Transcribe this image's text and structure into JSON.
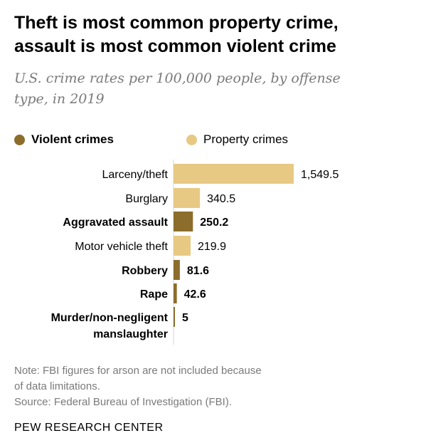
{
  "title_line1": "Theft is most common property crime,",
  "title_line2": "assault is most common violent crime",
  "subtitle_line1": "U.S. crime rates per 100,000 people, by offense",
  "subtitle_line2": "type, in 2019",
  "legend": {
    "violent": "Violent crimes",
    "property": "Property crimes"
  },
  "colors": {
    "violent": "#8c6d2c",
    "property": "#e8c983"
  },
  "chart_data": {
    "type": "bar",
    "orientation": "horizontal",
    "title": "Theft is most common property crime, assault is most common violent crime",
    "subtitle": "U.S. crime rates per 100,000 people, by offense type, in 2019",
    "categories": [
      [
        "Larceny/theft"
      ],
      [
        "Burglary"
      ],
      [
        "Aggravated assault"
      ],
      [
        "Motor vehicle theft"
      ],
      [
        "Robbery"
      ],
      [
        "Rape"
      ],
      [
        "Murder/non-negligent",
        "manslaughter"
      ]
    ],
    "values": [
      1549.5,
      340.5,
      250.2,
      219.9,
      81.6,
      42.6,
      5
    ],
    "value_labels": [
      "1,549.5",
      "340.5",
      "250.2",
      "219.9",
      "81.6",
      "42.6",
      "5"
    ],
    "group": [
      "property",
      "property",
      "violent",
      "property",
      "violent",
      "violent",
      "violent"
    ],
    "series": [
      {
        "name": "Violent crimes"
      },
      {
        "name": "Property crimes"
      }
    ],
    "xlim": [
      0,
      1549.5
    ],
    "legend_position": "top-left",
    "grid": false
  },
  "notes": {
    "line1": "Note: FBI figures for arson are not included because",
    "line2": "of data limitations.",
    "line3": "Source: Federal Bureau of Investigation (FBI)."
  },
  "credit": "PEW RESEARCH CENTER"
}
